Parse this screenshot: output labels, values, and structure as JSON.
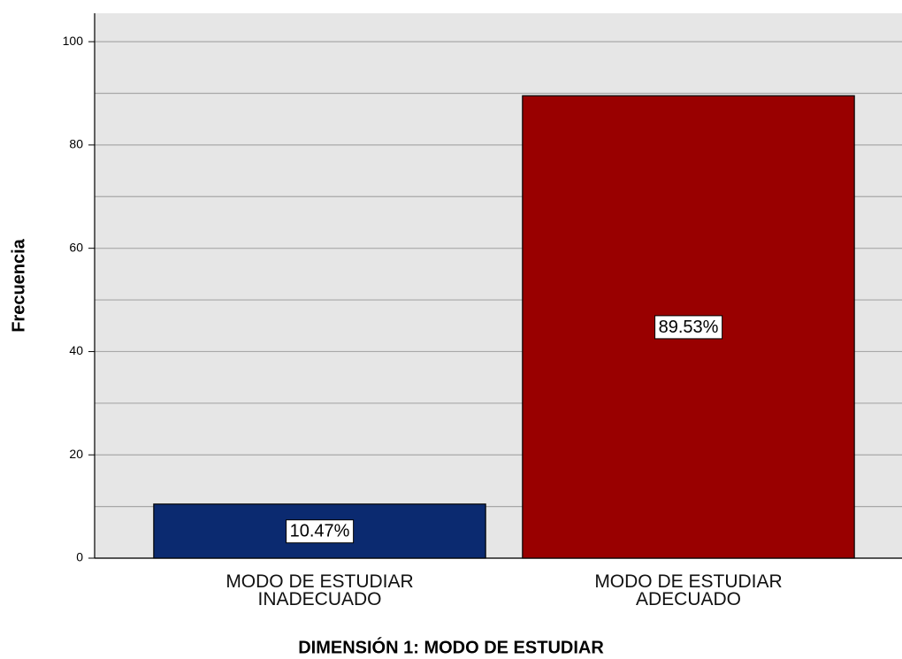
{
  "chart_data": {
    "type": "bar",
    "xlabel": "DIMENSIÓN 1: MODO DE ESTUDIAR",
    "ylabel": "Frecuencia",
    "categories": [
      "MODO DE ESTUDIAR\nINADECUADO",
      "MODO DE ESTUDIAR\nADECUADO"
    ],
    "values": [
      10.47,
      89.53
    ],
    "value_labels": [
      "10.47%",
      "89.53%"
    ],
    "colors": [
      "#0b2a70",
      "#990000"
    ],
    "ylim": [
      0,
      105.5
    ],
    "yticks": [
      0,
      20,
      40,
      60,
      80,
      100
    ],
    "minor_yticks": [
      10,
      30,
      50,
      70,
      90
    ],
    "grid": true
  }
}
